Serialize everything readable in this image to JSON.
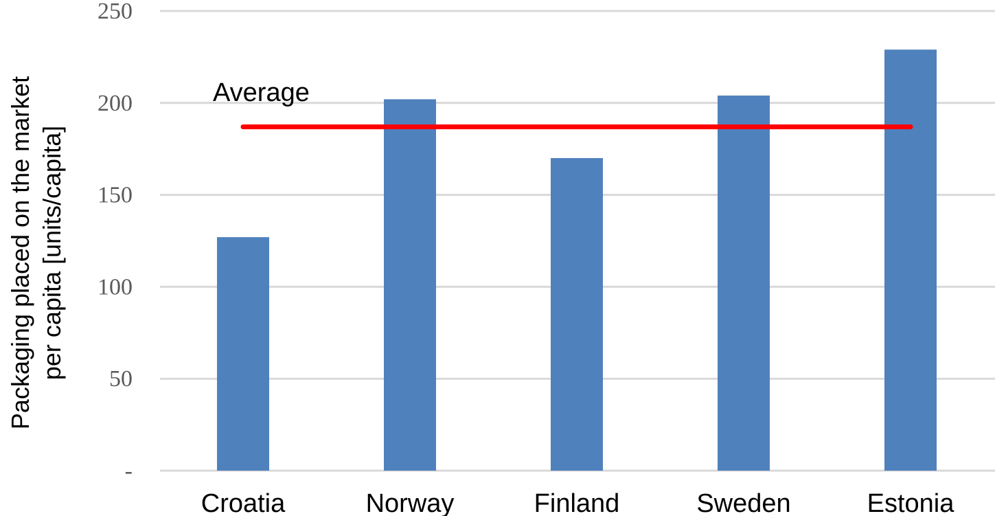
{
  "chart_data": {
    "type": "bar",
    "title": "",
    "xlabel": "",
    "ylabel": [
      "Packaging placed on the market",
      "per capita [units/capita]"
    ],
    "categories": [
      "Croatia",
      "Norway",
      "Finland",
      "Sweden",
      "Estonia"
    ],
    "values": [
      127,
      202,
      170,
      204,
      229
    ],
    "ylim": [
      0,
      250
    ],
    "yticks": [
      0,
      50,
      100,
      150,
      200,
      250
    ],
    "ytick_labels": [
      "-",
      "50",
      "100",
      "150",
      "200",
      "250"
    ],
    "grid": true,
    "bar_color": "#4f81bd",
    "reference_line": {
      "label": "Average",
      "value": 187,
      "color": "#ff0000"
    }
  }
}
